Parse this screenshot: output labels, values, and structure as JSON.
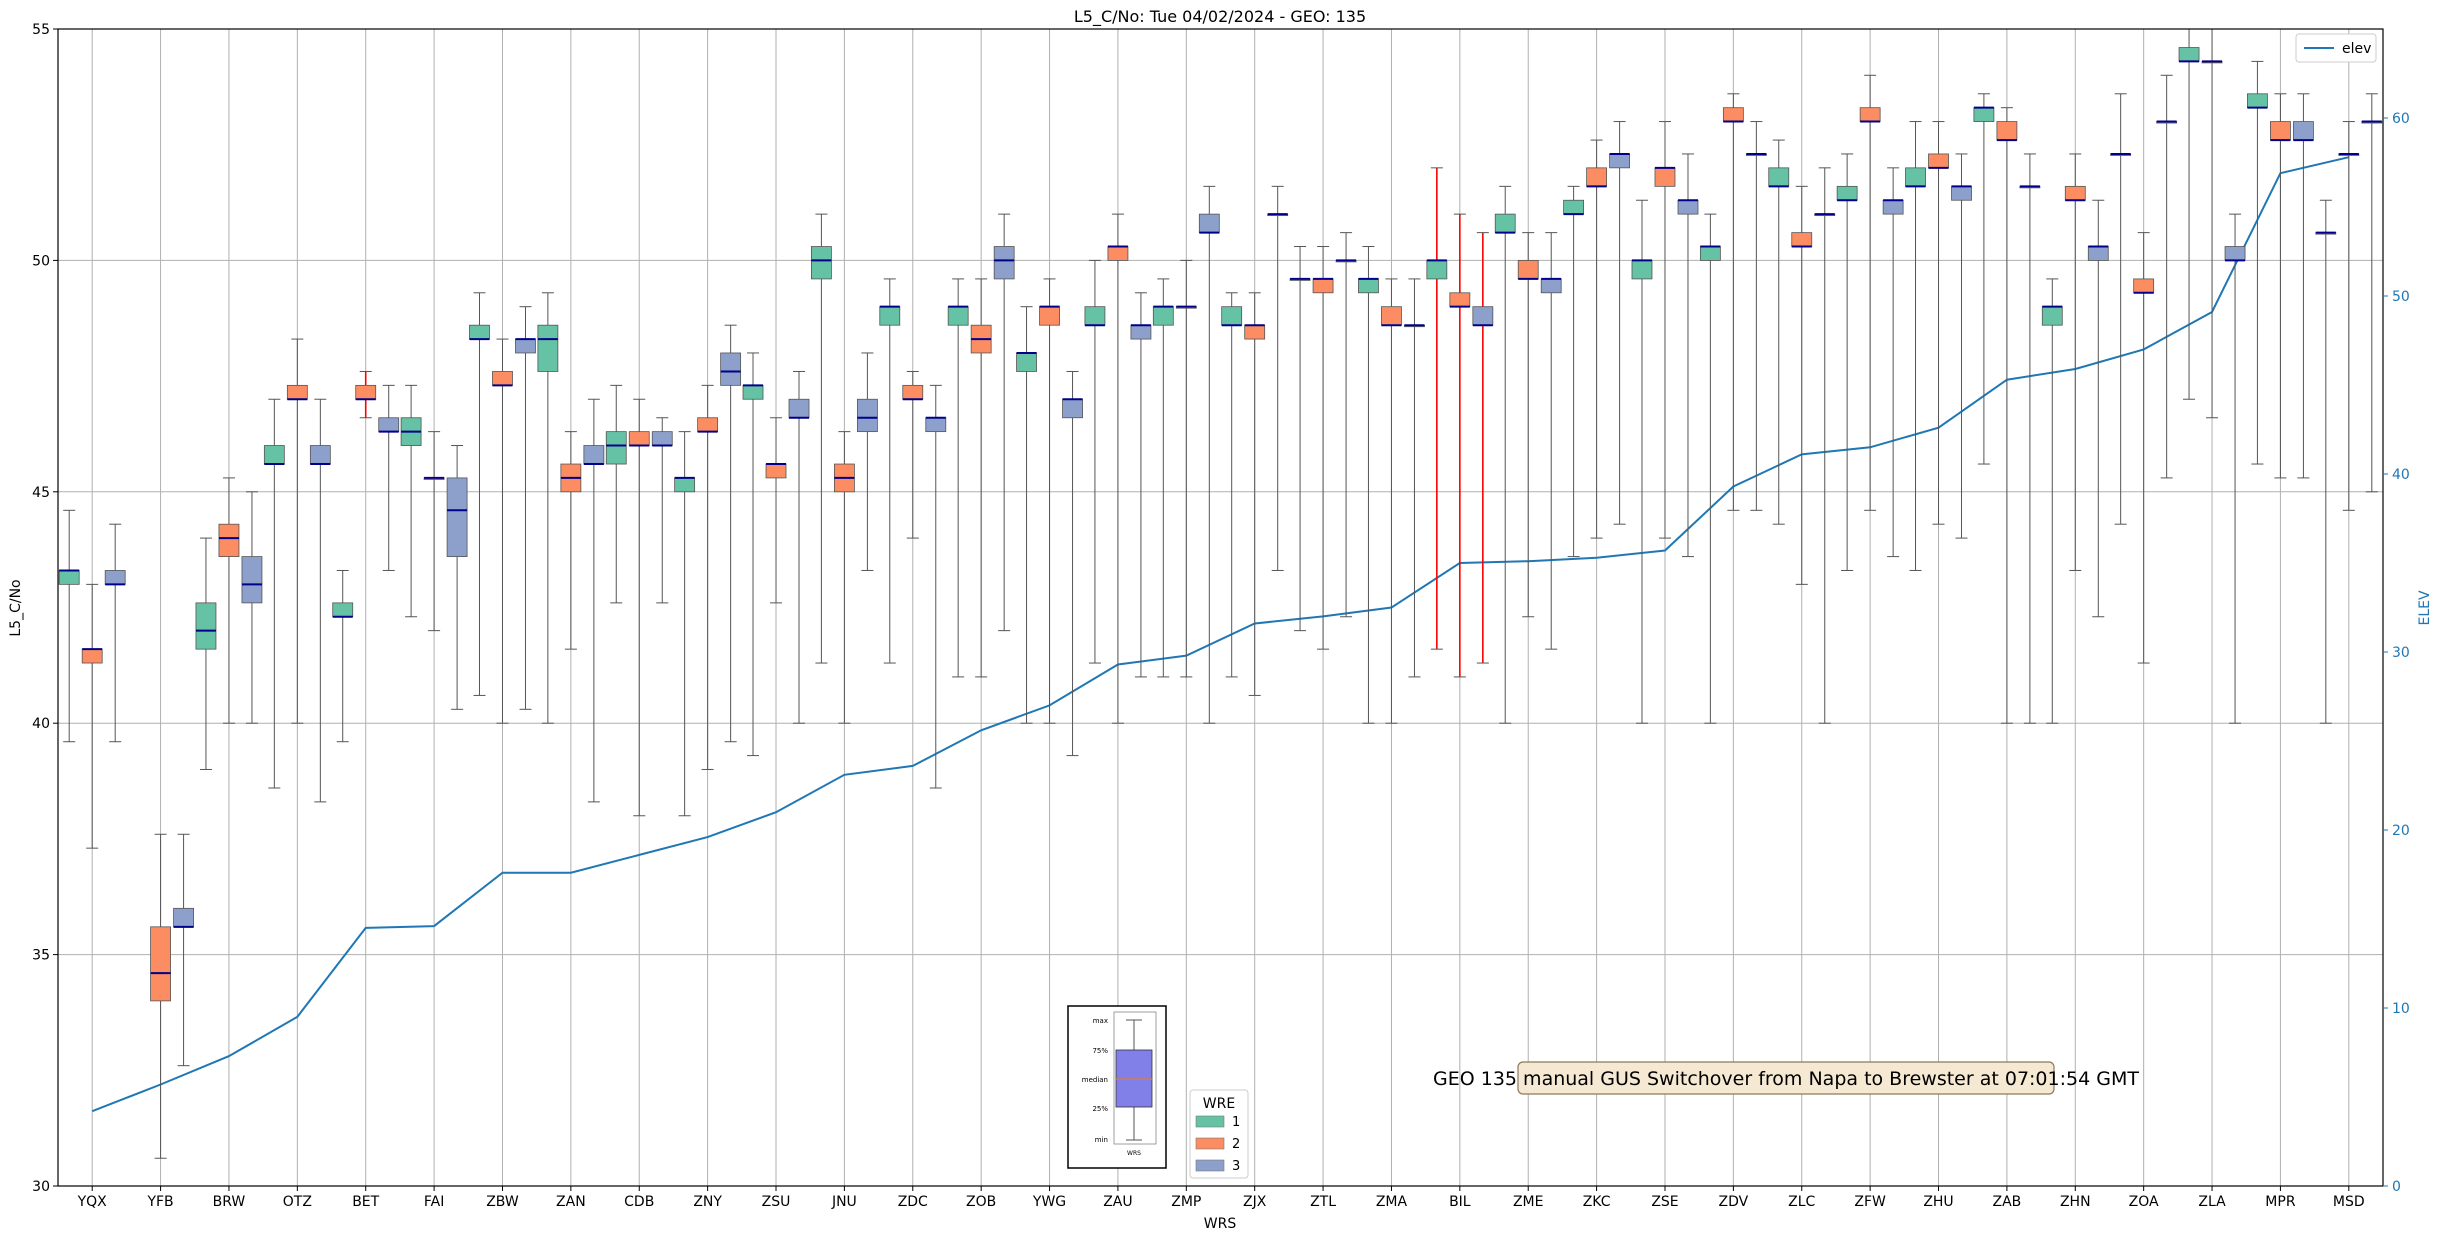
{
  "chart_data": {
    "type": "box",
    "title": "L5_C/No: Tue 04/02/2024 - GEO: 135",
    "xlabel": "WRS",
    "ylabel": "L5_C/No",
    "y2label": "ELEV",
    "ylim": [
      30,
      55
    ],
    "y2lim": [
      0,
      65
    ],
    "yticks": [
      30,
      35,
      40,
      45,
      50,
      55
    ],
    "y2ticks": [
      0,
      10,
      20,
      30,
      40,
      50,
      60
    ],
    "grid": true,
    "categories": [
      "YQX",
      "YFB",
      "BRW",
      "OTZ",
      "BET",
      "FAI",
      "ZBW",
      "ZAN",
      "CDB",
      "ZNY",
      "ZSU",
      "JNU",
      "ZDC",
      "ZOB",
      "YWG",
      "ZAU",
      "ZMP",
      "ZJX",
      "ZTL",
      "ZMA",
      "BIL",
      "ZME",
      "ZKC",
      "ZSE",
      "ZDV",
      "ZLC",
      "ZFW",
      "ZHU",
      "ZAB",
      "ZHN",
      "ZOA",
      "ZLA",
      "MPR",
      "MSD"
    ],
    "legend": {
      "title": "WRE",
      "placement": "bottom-center",
      "entries": [
        "1",
        "2",
        "3"
      ]
    },
    "line_legend": {
      "label": "elev",
      "placement": "top-right"
    },
    "colors": {
      "wre1": "#66c2a5",
      "wre2": "#fc8d62",
      "wre3": "#8da0cb",
      "median": "#00008b",
      "whisker": "#555555",
      "whisker_alert": "#ff0000",
      "elev": "#1f77b4"
    },
    "boxes": [
      {
        "wrs": "YQX",
        "wre": 1,
        "min": 39.6,
        "q1": 43.0,
        "median": 43.3,
        "q3": 43.3,
        "max": 44.6
      },
      {
        "wrs": "YQX",
        "wre": 2,
        "min": 37.3,
        "q1": 41.3,
        "median": 41.6,
        "q3": 41.6,
        "max": 43.0
      },
      {
        "wrs": "YQX",
        "wre": 3,
        "min": 39.6,
        "q1": 43.0,
        "median": 43.0,
        "q3": 43.3,
        "max": 44.3
      },
      {
        "wrs": "YFB",
        "wre": 2,
        "min": 30.6,
        "q1": 34.0,
        "median": 34.6,
        "q3": 35.6,
        "max": 37.6
      },
      {
        "wrs": "YFB",
        "wre": 3,
        "min": 32.6,
        "q1": 35.6,
        "median": 35.6,
        "q3": 36.0,
        "max": 37.6
      },
      {
        "wrs": "BRW",
        "wre": 1,
        "min": 39.0,
        "q1": 41.6,
        "median": 42.0,
        "q3": 42.6,
        "max": 44.0
      },
      {
        "wrs": "BRW",
        "wre": 2,
        "min": 40.0,
        "q1": 43.6,
        "median": 44.0,
        "q3": 44.3,
        "max": 45.3
      },
      {
        "wrs": "BRW",
        "wre": 3,
        "min": 40.0,
        "q1": 42.6,
        "median": 43.0,
        "q3": 43.6,
        "max": 45.0
      },
      {
        "wrs": "OTZ",
        "wre": 1,
        "min": 38.6,
        "q1": 45.6,
        "median": 45.6,
        "q3": 46.0,
        "max": 47.0
      },
      {
        "wrs": "OTZ",
        "wre": 2,
        "min": 40.0,
        "q1": 47.0,
        "median": 47.0,
        "q3": 47.3,
        "max": 48.3
      },
      {
        "wrs": "OTZ",
        "wre": 3,
        "min": 38.3,
        "q1": 45.6,
        "median": 45.6,
        "q3": 46.0,
        "max": 47.0
      },
      {
        "wrs": "BET",
        "wre": 1,
        "min": 39.6,
        "q1": 42.3,
        "median": 42.3,
        "q3": 42.6,
        "max": 43.3
      },
      {
        "wrs": "BET",
        "wre": 2,
        "min": 46.6,
        "q1": 47.0,
        "median": 47.0,
        "q3": 47.3,
        "max": 47.6,
        "alert": true
      },
      {
        "wrs": "BET",
        "wre": 3,
        "min": 43.3,
        "q1": 46.3,
        "median": 46.3,
        "q3": 46.6,
        "max": 47.3
      },
      {
        "wrs": "FAI",
        "wre": 1,
        "min": 42.3,
        "q1": 46.0,
        "median": 46.3,
        "q3": 46.6,
        "max": 47.3
      },
      {
        "wrs": "FAI",
        "wre": 2,
        "min": 42.0,
        "q1": 45.3,
        "median": 45.3,
        "q3": 45.3,
        "max": 46.3
      },
      {
        "wrs": "FAI",
        "wre": 3,
        "min": 40.3,
        "q1": 43.6,
        "median": 44.6,
        "q3": 45.3,
        "max": 46.0
      },
      {
        "wrs": "ZBW",
        "wre": 1,
        "min": 40.6,
        "q1": 48.3,
        "median": 48.3,
        "q3": 48.6,
        "max": 49.3
      },
      {
        "wrs": "ZBW",
        "wre": 2,
        "min": 40.0,
        "q1": 47.3,
        "median": 47.3,
        "q3": 47.6,
        "max": 48.3
      },
      {
        "wrs": "ZBW",
        "wre": 3,
        "min": 40.3,
        "q1": 48.0,
        "median": 48.3,
        "q3": 48.3,
        "max": 49.0
      },
      {
        "wrs": "ZAN",
        "wre": 1,
        "min": 40.0,
        "q1": 47.6,
        "median": 48.3,
        "q3": 48.6,
        "max": 49.3
      },
      {
        "wrs": "ZAN",
        "wre": 2,
        "min": 41.6,
        "q1": 45.0,
        "median": 45.3,
        "q3": 45.6,
        "max": 46.3
      },
      {
        "wrs": "ZAN",
        "wre": 3,
        "min": 38.3,
        "q1": 45.6,
        "median": 45.6,
        "q3": 46.0,
        "max": 47.0
      },
      {
        "wrs": "CDB",
        "wre": 1,
        "min": 42.6,
        "q1": 45.6,
        "median": 46.0,
        "q3": 46.3,
        "max": 47.3
      },
      {
        "wrs": "CDB",
        "wre": 2,
        "min": 38.0,
        "q1": 46.0,
        "median": 46.0,
        "q3": 46.3,
        "max": 47.0
      },
      {
        "wrs": "CDB",
        "wre": 3,
        "min": 42.6,
        "q1": 46.0,
        "median": 46.0,
        "q3": 46.3,
        "max": 46.6
      },
      {
        "wrs": "ZNY",
        "wre": 1,
        "min": 38.0,
        "q1": 45.0,
        "median": 45.3,
        "q3": 45.3,
        "max": 46.3
      },
      {
        "wrs": "ZNY",
        "wre": 2,
        "min": 39.0,
        "q1": 46.3,
        "median": 46.3,
        "q3": 46.6,
        "max": 47.3
      },
      {
        "wrs": "ZNY",
        "wre": 3,
        "min": 39.6,
        "q1": 47.3,
        "median": 47.6,
        "q3": 48.0,
        "max": 48.6
      },
      {
        "wrs": "ZSU",
        "wre": 1,
        "min": 39.3,
        "q1": 47.0,
        "median": 47.3,
        "q3": 47.3,
        "max": 48.0
      },
      {
        "wrs": "ZSU",
        "wre": 2,
        "min": 42.6,
        "q1": 45.3,
        "median": 45.6,
        "q3": 45.6,
        "max": 46.6
      },
      {
        "wrs": "ZSU",
        "wre": 3,
        "min": 40.0,
        "q1": 46.6,
        "median": 46.6,
        "q3": 47.0,
        "max": 47.6
      },
      {
        "wrs": "JNU",
        "wre": 1,
        "min": 41.3,
        "q1": 49.6,
        "median": 50.0,
        "q3": 50.3,
        "max": 51.0
      },
      {
        "wrs": "JNU",
        "wre": 2,
        "min": 40.0,
        "q1": 45.0,
        "median": 45.3,
        "q3": 45.6,
        "max": 46.3
      },
      {
        "wrs": "JNU",
        "wre": 3,
        "min": 43.3,
        "q1": 46.3,
        "median": 46.6,
        "q3": 47.0,
        "max": 48.0
      },
      {
        "wrs": "ZDC",
        "wre": 1,
        "min": 41.3,
        "q1": 48.6,
        "median": 49.0,
        "q3": 49.0,
        "max": 49.6
      },
      {
        "wrs": "ZDC",
        "wre": 2,
        "min": 44.0,
        "q1": 47.0,
        "median": 47.0,
        "q3": 47.3,
        "max": 47.6
      },
      {
        "wrs": "ZDC",
        "wre": 3,
        "min": 38.6,
        "q1": 46.3,
        "median": 46.6,
        "q3": 46.6,
        "max": 47.3
      },
      {
        "wrs": "ZOB",
        "wre": 1,
        "min": 41.0,
        "q1": 48.6,
        "median": 49.0,
        "q3": 49.0,
        "max": 49.6
      },
      {
        "wrs": "ZOB",
        "wre": 2,
        "min": 41.0,
        "q1": 48.0,
        "median": 48.3,
        "q3": 48.6,
        "max": 49.6
      },
      {
        "wrs": "ZOB",
        "wre": 3,
        "min": 42.0,
        "q1": 49.6,
        "median": 50.0,
        "q3": 50.3,
        "max": 51.0
      },
      {
        "wrs": "YWG",
        "wre": 1,
        "min": 40.0,
        "q1": 47.6,
        "median": 48.0,
        "q3": 48.0,
        "max": 49.0
      },
      {
        "wrs": "YWG",
        "wre": 2,
        "min": 40.0,
        "q1": 48.6,
        "median": 49.0,
        "q3": 49.0,
        "max": 49.6
      },
      {
        "wrs": "YWG",
        "wre": 3,
        "min": 39.3,
        "q1": 46.6,
        "median": 47.0,
        "q3": 47.0,
        "max": 47.6
      },
      {
        "wrs": "ZAU",
        "wre": 1,
        "min": 41.3,
        "q1": 48.6,
        "median": 48.6,
        "q3": 49.0,
        "max": 50.0
      },
      {
        "wrs": "ZAU",
        "wre": 2,
        "min": 40.0,
        "q1": 50.0,
        "median": 50.3,
        "q3": 50.3,
        "max": 51.0
      },
      {
        "wrs": "ZAU",
        "wre": 3,
        "min": 41.0,
        "q1": 48.3,
        "median": 48.6,
        "q3": 48.6,
        "max": 49.3
      },
      {
        "wrs": "ZMP",
        "wre": 1,
        "min": 41.0,
        "q1": 48.6,
        "median": 49.0,
        "q3": 49.0,
        "max": 49.6
      },
      {
        "wrs": "ZMP",
        "wre": 2,
        "min": 41.0,
        "q1": 49.0,
        "median": 49.0,
        "q3": 49.0,
        "max": 50.0
      },
      {
        "wrs": "ZMP",
        "wre": 3,
        "min": 40.0,
        "q1": 50.6,
        "median": 50.6,
        "q3": 51.0,
        "max": 51.6
      },
      {
        "wrs": "ZJX",
        "wre": 1,
        "min": 41.0,
        "q1": 48.6,
        "median": 48.6,
        "q3": 49.0,
        "max": 49.3
      },
      {
        "wrs": "ZJX",
        "wre": 2,
        "min": 40.6,
        "q1": 48.3,
        "median": 48.6,
        "q3": 48.6,
        "max": 49.3
      },
      {
        "wrs": "ZJX",
        "wre": 3,
        "min": 43.3,
        "q1": 51.0,
        "median": 51.0,
        "q3": 51.0,
        "max": 51.6
      },
      {
        "wrs": "ZTL",
        "wre": 1,
        "min": 42.0,
        "q1": 49.6,
        "median": 49.6,
        "q3": 49.6,
        "max": 50.3
      },
      {
        "wrs": "ZTL",
        "wre": 2,
        "min": 41.6,
        "q1": 49.3,
        "median": 49.6,
        "q3": 49.6,
        "max": 50.3
      },
      {
        "wrs": "ZTL",
        "wre": 3,
        "min": 42.3,
        "q1": 50.0,
        "median": 50.0,
        "q3": 50.0,
        "max": 50.6
      },
      {
        "wrs": "ZMA",
        "wre": 1,
        "min": 40.0,
        "q1": 49.3,
        "median": 49.6,
        "q3": 49.6,
        "max": 50.3
      },
      {
        "wrs": "ZMA",
        "wre": 2,
        "min": 40.0,
        "q1": 48.6,
        "median": 48.6,
        "q3": 49.0,
        "max": 49.6
      },
      {
        "wrs": "ZMA",
        "wre": 3,
        "min": 41.0,
        "q1": 48.6,
        "median": 48.6,
        "q3": 48.6,
        "max": 49.6
      },
      {
        "wrs": "BIL",
        "wre": 1,
        "min": 41.6,
        "q1": 49.6,
        "median": 50.0,
        "q3": 50.0,
        "max": 52.0,
        "alert": true
      },
      {
        "wrs": "BIL",
        "wre": 2,
        "min": 41.0,
        "q1": 49.0,
        "median": 49.0,
        "q3": 49.3,
        "max": 51.0,
        "alert": true
      },
      {
        "wrs": "BIL",
        "wre": 3,
        "min": 41.3,
        "q1": 48.6,
        "median": 48.6,
        "q3": 49.0,
        "max": 50.6,
        "alert": true
      },
      {
        "wrs": "ZME",
        "wre": 1,
        "min": 40.0,
        "q1": 50.6,
        "median": 50.6,
        "q3": 51.0,
        "max": 51.6
      },
      {
        "wrs": "ZME",
        "wre": 2,
        "min": 42.3,
        "q1": 49.6,
        "median": 49.6,
        "q3": 50.0,
        "max": 50.6
      },
      {
        "wrs": "ZME",
        "wre": 3,
        "min": 41.6,
        "q1": 49.3,
        "median": 49.6,
        "q3": 49.6,
        "max": 50.6
      },
      {
        "wrs": "ZKC",
        "wre": 1,
        "min": 43.6,
        "q1": 51.0,
        "median": 51.0,
        "q3": 51.3,
        "max": 51.6
      },
      {
        "wrs": "ZKC",
        "wre": 2,
        "min": 44.0,
        "q1": 51.6,
        "median": 51.6,
        "q3": 52.0,
        "max": 52.6
      },
      {
        "wrs": "ZKC",
        "wre": 3,
        "min": 44.3,
        "q1": 52.0,
        "median": 52.3,
        "q3": 52.3,
        "max": 53.0
      },
      {
        "wrs": "ZSE",
        "wre": 1,
        "min": 40.0,
        "q1": 49.6,
        "median": 50.0,
        "q3": 50.0,
        "max": 51.3
      },
      {
        "wrs": "ZSE",
        "wre": 2,
        "min": 44.0,
        "q1": 51.6,
        "median": 52.0,
        "q3": 52.0,
        "max": 53.0
      },
      {
        "wrs": "ZSE",
        "wre": 3,
        "min": 43.6,
        "q1": 51.0,
        "median": 51.3,
        "q3": 51.3,
        "max": 52.3
      },
      {
        "wrs": "ZDV",
        "wre": 1,
        "min": 40.0,
        "q1": 50.0,
        "median": 50.3,
        "q3": 50.3,
        "max": 51.0
      },
      {
        "wrs": "ZDV",
        "wre": 2,
        "min": 44.6,
        "q1": 53.0,
        "median": 53.0,
        "q3": 53.3,
        "max": 53.6
      },
      {
        "wrs": "ZDV",
        "wre": 3,
        "min": 44.6,
        "q1": 52.3,
        "median": 52.3,
        "q3": 52.3,
        "max": 53.0
      },
      {
        "wrs": "ZLC",
        "wre": 1,
        "min": 44.3,
        "q1": 51.6,
        "median": 51.6,
        "q3": 52.0,
        "max": 52.6
      },
      {
        "wrs": "ZLC",
        "wre": 2,
        "min": 43.0,
        "q1": 50.3,
        "median": 50.3,
        "q3": 50.6,
        "max": 51.6
      },
      {
        "wrs": "ZLC",
        "wre": 3,
        "min": 40.0,
        "q1": 51.0,
        "median": 51.0,
        "q3": 51.0,
        "max": 52.0
      },
      {
        "wrs": "ZFW",
        "wre": 1,
        "min": 43.3,
        "q1": 51.3,
        "median": 51.3,
        "q3": 51.6,
        "max": 52.3
      },
      {
        "wrs": "ZFW",
        "wre": 2,
        "min": 44.6,
        "q1": 53.0,
        "median": 53.0,
        "q3": 53.3,
        "max": 54.0
      },
      {
        "wrs": "ZFW",
        "wre": 3,
        "min": 43.6,
        "q1": 51.0,
        "median": 51.3,
        "q3": 51.3,
        "max": 52.0
      },
      {
        "wrs": "ZHU",
        "wre": 1,
        "min": 43.3,
        "q1": 51.6,
        "median": 51.6,
        "q3": 52.0,
        "max": 53.0
      },
      {
        "wrs": "ZHU",
        "wre": 2,
        "min": 44.3,
        "q1": 52.0,
        "median": 52.0,
        "q3": 52.3,
        "max": 53.0
      },
      {
        "wrs": "ZHU",
        "wre": 3,
        "min": 44.0,
        "q1": 51.3,
        "median": 51.6,
        "q3": 51.6,
        "max": 52.3
      },
      {
        "wrs": "ZAB",
        "wre": 1,
        "min": 45.6,
        "q1": 53.0,
        "median": 53.3,
        "q3": 53.3,
        "max": 53.6
      },
      {
        "wrs": "ZAB",
        "wre": 2,
        "min": 40.0,
        "q1": 52.6,
        "median": 52.6,
        "q3": 53.0,
        "max": 53.3
      },
      {
        "wrs": "ZAB",
        "wre": 3,
        "min": 40.0,
        "q1": 51.6,
        "median": 51.6,
        "q3": 51.6,
        "max": 52.3
      },
      {
        "wrs": "ZHN",
        "wre": 1,
        "min": 40.0,
        "q1": 48.6,
        "median": 49.0,
        "q3": 49.0,
        "max": 49.6
      },
      {
        "wrs": "ZHN",
        "wre": 2,
        "min": 43.3,
        "q1": 51.3,
        "median": 51.3,
        "q3": 51.6,
        "max": 52.3
      },
      {
        "wrs": "ZHN",
        "wre": 3,
        "min": 42.3,
        "q1": 50.0,
        "median": 50.3,
        "q3": 50.3,
        "max": 51.3
      },
      {
        "wrs": "ZOA",
        "wre": 1,
        "min": 44.3,
        "q1": 52.3,
        "median": 52.3,
        "q3": 52.3,
        "max": 53.6
      },
      {
        "wrs": "ZOA",
        "wre": 2,
        "min": 41.3,
        "q1": 49.3,
        "median": 49.3,
        "q3": 49.6,
        "max": 50.6
      },
      {
        "wrs": "ZOA",
        "wre": 3,
        "min": 45.3,
        "q1": 53.0,
        "median": 53.0,
        "q3": 53.0,
        "max": 54.0
      },
      {
        "wrs": "ZLA",
        "wre": 1,
        "min": 47.0,
        "q1": 54.3,
        "median": 54.3,
        "q3": 54.6,
        "max": 55.0
      },
      {
        "wrs": "ZLA",
        "wre": 2,
        "min": 46.6,
        "q1": 54.3,
        "median": 54.3,
        "q3": 54.3,
        "max": 55.0
      },
      {
        "wrs": "ZLA",
        "wre": 3,
        "min": 40.0,
        "q1": 50.0,
        "median": 50.0,
        "q3": 50.3,
        "max": 51.0
      },
      {
        "wrs": "MPR",
        "wre": 1,
        "min": 45.6,
        "q1": 53.3,
        "median": 53.3,
        "q3": 53.6,
        "max": 54.3
      },
      {
        "wrs": "MPR",
        "wre": 2,
        "min": 45.3,
        "q1": 52.6,
        "median": 52.6,
        "q3": 53.0,
        "max": 53.6
      },
      {
        "wrs": "MPR",
        "wre": 3,
        "min": 45.3,
        "q1": 52.6,
        "median": 52.6,
        "q3": 53.0,
        "max": 53.6
      },
      {
        "wrs": "MSD",
        "wre": 1,
        "min": 40.0,
        "q1": 50.6,
        "median": 50.6,
        "q3": 50.6,
        "max": 51.3
      },
      {
        "wrs": "MSD",
        "wre": 2,
        "min": 44.6,
        "q1": 52.3,
        "median": 52.3,
        "q3": 52.3,
        "max": 53.0
      },
      {
        "wrs": "MSD",
        "wre": 3,
        "min": 45.0,
        "q1": 53.0,
        "median": 53.0,
        "q3": 53.0,
        "max": 53.6
      }
    ],
    "elev_series": {
      "name": "elev",
      "values": [
        4.2,
        5.7,
        7.3,
        9.5,
        14.5,
        14.6,
        17.6,
        17.6,
        18.6,
        19.6,
        21.0,
        23.1,
        23.6,
        25.6,
        27.0,
        29.3,
        29.8,
        31.6,
        32.0,
        32.5,
        35.0,
        35.1,
        35.3,
        35.7,
        39.3,
        41.1,
        41.5,
        42.6,
        45.3,
        45.9,
        47.0,
        49.1,
        56.9,
        57.8
      ]
    },
    "annotation": "GEO 135 manual GUS Switchover from Napa to Brewster at 07:01:54 GMT",
    "inset_legend": {
      "labels": [
        "max",
        "75%",
        "median",
        "25%",
        "min"
      ],
      "xlabel": "WRS"
    }
  }
}
